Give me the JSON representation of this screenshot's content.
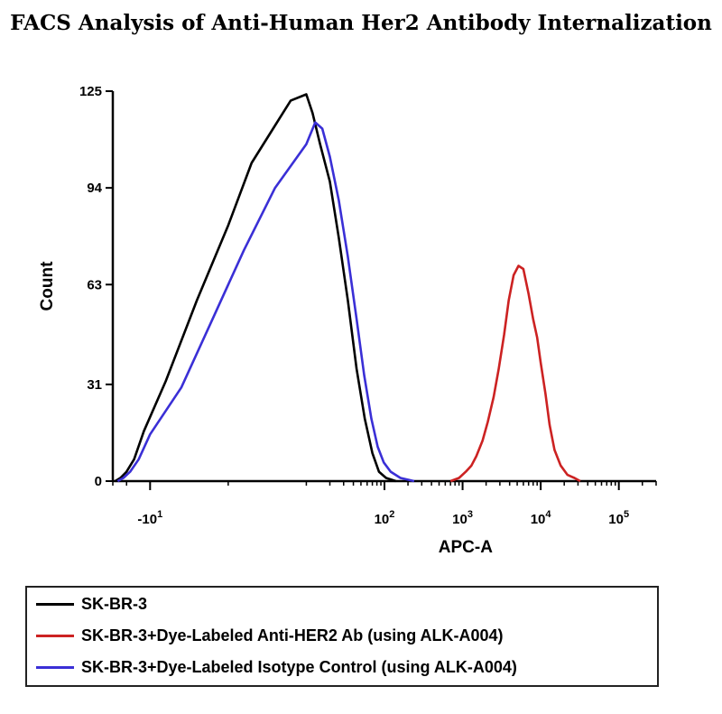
{
  "title": "FACS Analysis of Anti-Human Her2 Antibody Internalization",
  "chart_data": {
    "type": "line",
    "title": "FACS Analysis of Anti-Human Her2 Antibody Internalization",
    "xlabel": "APC-A",
    "ylabel": "Count",
    "x_scale": "logicle (biexponential)",
    "y_ticks": [
      "0",
      "31",
      "63",
      "94",
      "125"
    ],
    "ylim": [
      0,
      125
    ],
    "x_ticks": [
      {
        "label": "-10",
        "sup": "1",
        "value": -10
      },
      {
        "label": "10",
        "sup": "2",
        "value": 100
      },
      {
        "label": "10",
        "sup": "3",
        "value": 1000
      },
      {
        "label": "10",
        "sup": "4",
        "value": 10000
      },
      {
        "label": "10",
        "sup": "5",
        "value": 100000
      }
    ],
    "xlim": [
      -30,
      300000
    ],
    "grid": false,
    "legend_position": "below",
    "series": [
      {
        "name": "SK-BR-3",
        "color": "#000000",
        "points": [
          [
            -28,
            0
          ],
          [
            -24,
            1
          ],
          [
            -20,
            3
          ],
          [
            -16,
            7
          ],
          [
            -12,
            16
          ],
          [
            -8,
            32
          ],
          [
            -4,
            58
          ],
          [
            0,
            82
          ],
          [
            3,
            102
          ],
          [
            6,
            114
          ],
          [
            8,
            122
          ],
          [
            10,
            124
          ],
          [
            12,
            118
          ],
          [
            15,
            108
          ],
          [
            20,
            96
          ],
          [
            26,
            78
          ],
          [
            34,
            58
          ],
          [
            44,
            36
          ],
          [
            56,
            20
          ],
          [
            70,
            9
          ],
          [
            85,
            3
          ],
          [
            105,
            1
          ],
          [
            140,
            0
          ]
        ]
      },
      {
        "name": "SK-BR-3+Dye-Labeled Anti-HER2 Ab (using ALK-A004)",
        "color": "#cc2222",
        "points": [
          [
            700,
            0
          ],
          [
            900,
            1
          ],
          [
            1100,
            3
          ],
          [
            1300,
            5
          ],
          [
            1500,
            8
          ],
          [
            1800,
            13
          ],
          [
            2100,
            19
          ],
          [
            2500,
            27
          ],
          [
            2900,
            36
          ],
          [
            3400,
            47
          ],
          [
            3900,
            58
          ],
          [
            4500,
            66
          ],
          [
            5200,
            69
          ],
          [
            6000,
            68
          ],
          [
            7000,
            60
          ],
          [
            8000,
            52
          ],
          [
            9000,
            46
          ],
          [
            10000,
            38
          ],
          [
            11500,
            28
          ],
          [
            13000,
            18
          ],
          [
            15000,
            10
          ],
          [
            18000,
            5
          ],
          [
            22000,
            2
          ],
          [
            27000,
            1
          ],
          [
            32000,
            0
          ]
        ]
      },
      {
        "name": "SK-BR-3+Dye-Labeled Isotype Control (using ALK-A004)",
        "color": "#3a2fd6",
        "points": [
          [
            -26,
            0
          ],
          [
            -22,
            1
          ],
          [
            -18,
            3
          ],
          [
            -14,
            7
          ],
          [
            -10,
            15
          ],
          [
            -6,
            30
          ],
          [
            -2,
            52
          ],
          [
            2,
            74
          ],
          [
            6,
            94
          ],
          [
            10,
            108
          ],
          [
            13,
            115
          ],
          [
            16,
            113
          ],
          [
            20,
            104
          ],
          [
            26,
            90
          ],
          [
            34,
            72
          ],
          [
            44,
            52
          ],
          [
            55,
            34
          ],
          [
            68,
            20
          ],
          [
            82,
            11
          ],
          [
            98,
            6
          ],
          [
            120,
            3
          ],
          [
            160,
            1
          ],
          [
            240,
            0
          ]
        ]
      }
    ]
  },
  "legend": {
    "items": [
      {
        "label": "SK-BR-3",
        "color": "#000000"
      },
      {
        "label": "SK-BR-3+Dye-Labeled Anti-HER2 Ab (using ALK-A004)",
        "color": "#cc2222"
      },
      {
        "label": "SK-BR-3+Dye-Labeled Isotype Control (using ALK-A004)",
        "color": "#3a2fd6"
      }
    ]
  }
}
